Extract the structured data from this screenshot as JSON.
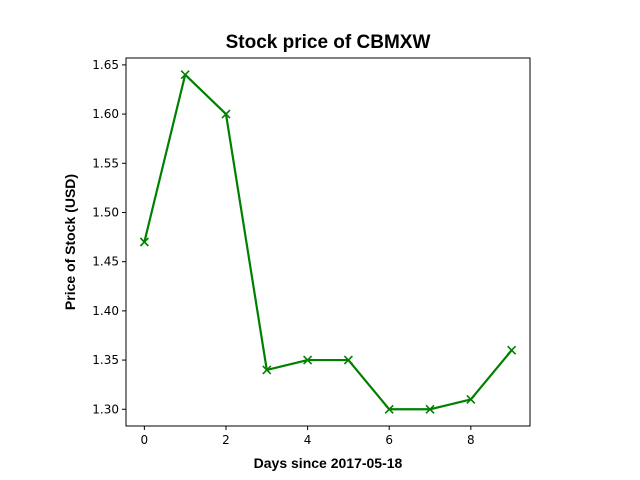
{
  "chart_data": {
    "type": "line",
    "title": "Stock price of CBMXW",
    "xlabel": "Days since 2017-05-18",
    "ylabel": "Price of Stock (USD)",
    "x": [
      0,
      1,
      2,
      3,
      4,
      5,
      6,
      7,
      8,
      9
    ],
    "series": [
      {
        "values": [
          1.47,
          1.64,
          1.6,
          1.34,
          1.35,
          1.35,
          1.3,
          1.3,
          1.31,
          1.36
        ],
        "color": "#008000",
        "marker": "x"
      }
    ],
    "xlim": [
      -0.45,
      9.45
    ],
    "ylim": [
      1.283,
      1.657
    ],
    "xticks": [
      0,
      2,
      4,
      6,
      8
    ],
    "yticks": [
      "1.30",
      "1.35",
      "1.40",
      "1.45",
      "1.50",
      "1.55",
      "1.60",
      "1.65"
    ],
    "grid": false,
    "legend": false
  }
}
